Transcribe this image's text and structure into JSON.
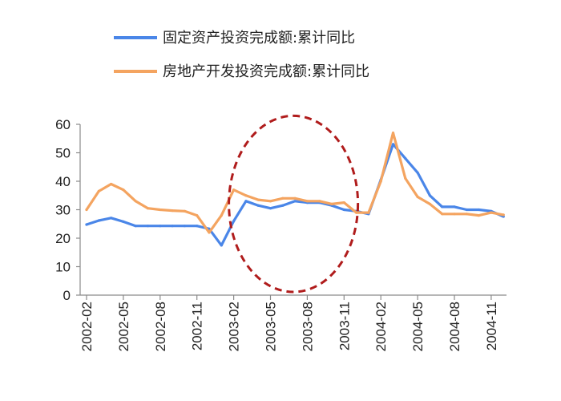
{
  "chart_data": {
    "type": "line",
    "title": "",
    "xlabel": "",
    "ylabel": "",
    "ylim": [
      0,
      60
    ],
    "yticks": [
      0,
      10,
      20,
      30,
      40,
      50,
      60
    ],
    "grid": false,
    "legend_position": "top",
    "x": [
      "2002-02",
      "2002-03",
      "2002-04",
      "2002-05",
      "2002-06",
      "2002-07",
      "2002-08",
      "2002-09",
      "2002-10",
      "2002-11",
      "2002-12",
      "2003-01",
      "2003-02",
      "2003-03",
      "2003-04",
      "2003-05",
      "2003-06",
      "2003-07",
      "2003-08",
      "2003-09",
      "2003-10",
      "2003-11",
      "2003-12",
      "2004-01",
      "2004-02",
      "2004-03",
      "2004-04",
      "2004-05",
      "2004-06",
      "2004-07",
      "2004-08",
      "2004-09",
      "2004-10",
      "2004-11",
      "2004-12"
    ],
    "xtick_labels": [
      "2002-02",
      "2002-05",
      "2002-08",
      "2002-11",
      "2003-02",
      "2003-05",
      "2003-08",
      "2003-11",
      "2004-02",
      "2004-05",
      "2004-08",
      "2004-11"
    ],
    "series": [
      {
        "name": "固定资产投资完成额:累计同比",
        "color": "#4a86e8",
        "values": [
          24.8,
          26.2,
          27.1,
          25.8,
          24.3,
          24.3,
          24.3,
          24.3,
          24.3,
          24.3,
          23.3,
          17.5,
          26.0,
          33.0,
          31.5,
          30.5,
          31.5,
          33.0,
          32.5,
          32.5,
          31.5,
          30.0,
          29.5,
          28.5,
          40.5,
          53.0,
          48.0,
          43.0,
          35.0,
          31.0,
          31.0,
          30.0,
          30.0,
          29.5,
          27.6
        ]
      },
      {
        "name": "房地产开发投资完成额:累计同比",
        "color": "#f4a460",
        "values": [
          30.0,
          36.5,
          39.0,
          37.0,
          33.0,
          30.5,
          30.0,
          29.7,
          29.5,
          28.0,
          22.0,
          28.0,
          37.0,
          35.0,
          33.5,
          33.0,
          34.0,
          34.0,
          33.0,
          33.0,
          32.0,
          32.5,
          29.0,
          29.0,
          40.0,
          57.0,
          41.0,
          34.5,
          32.0,
          28.5,
          28.5,
          28.5,
          28.0,
          29.0,
          28.2
        ]
      }
    ],
    "annotations": [
      {
        "type": "ellipse",
        "style": "dashed",
        "color": "#b01c1c",
        "x_range": [
          "2003-02",
          "2003-12"
        ],
        "y_range": [
          0,
          63
        ]
      }
    ]
  }
}
